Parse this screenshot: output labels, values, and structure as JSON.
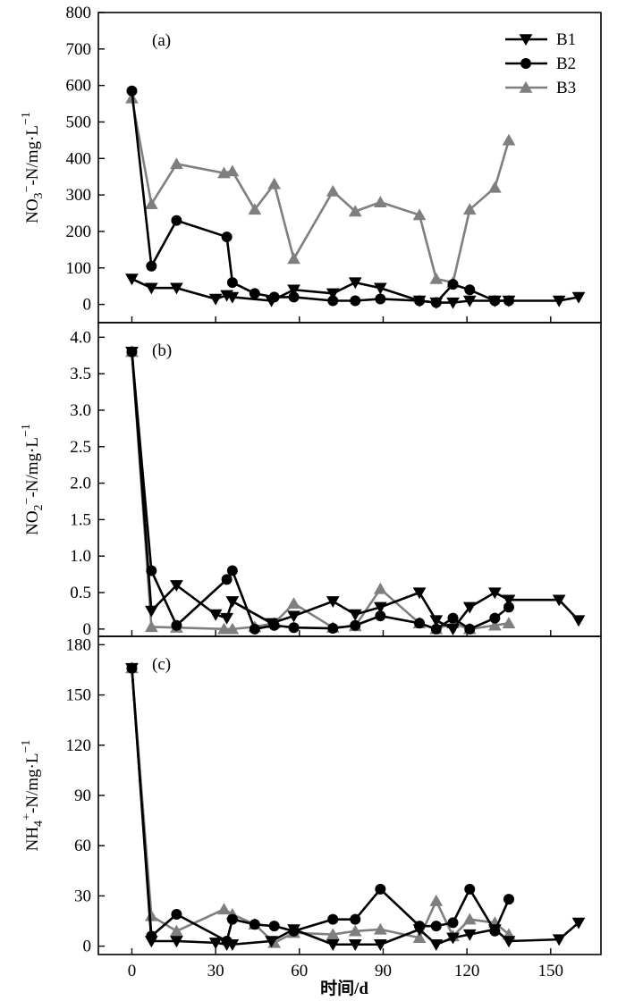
{
  "colors": {
    "B1": "#000000",
    "B2": "#000000",
    "B3": "#7f7f7f",
    "axis": "#000000"
  },
  "markers": {
    "B1": "triangle-down",
    "B2": "circle",
    "B3": "triangle-up"
  },
  "xaxis": {
    "label": "时间/d",
    "ticks": [
      0,
      30,
      60,
      90,
      120,
      150
    ],
    "tick_labels": [
      "0",
      "30",
      "60",
      "90",
      "120",
      "150"
    ],
    "range": [
      -12,
      168
    ]
  },
  "legend": {
    "placement": "top-right",
    "entries": [
      "B1",
      "B2",
      "B3"
    ]
  },
  "chart_data": [
    {
      "type": "line",
      "panel": "(a)",
      "ylabel_parts": [
        "NO",
        "3",
        "−",
        "-N/mg·L",
        "−1"
      ],
      "ylim": [
        -50,
        800
      ],
      "yticks": [
        0,
        100,
        200,
        300,
        400,
        500,
        600,
        700,
        800
      ],
      "ytick_labels": [
        "0",
        "100",
        "200",
        "300",
        "400",
        "500",
        "600",
        "700",
        "800"
      ],
      "series": [
        {
          "name": "B1",
          "x": [
            0,
            7,
            16,
            30,
            34,
            36,
            50,
            58,
            72,
            80,
            89,
            103,
            109,
            115,
            121,
            130,
            135,
            153,
            160
          ],
          "y": [
            70,
            45,
            45,
            15,
            25,
            20,
            10,
            40,
            30,
            60,
            45,
            10,
            5,
            5,
            10,
            10,
            10,
            10,
            20
          ]
        },
        {
          "name": "B2",
          "x": [
            0,
            7,
            16,
            34,
            36,
            44,
            51,
            58,
            72,
            80,
            89,
            103,
            109,
            115,
            121,
            130,
            135
          ],
          "y": [
            585,
            105,
            230,
            185,
            60,
            30,
            20,
            20,
            10,
            10,
            15,
            10,
            5,
            55,
            40,
            10,
            10
          ]
        },
        {
          "name": "B3",
          "x": [
            0,
            7,
            16,
            33,
            36,
            44,
            51,
            58,
            72,
            80,
            89,
            103,
            109,
            115,
            121,
            130,
            135
          ],
          "y": [
            565,
            275,
            385,
            360,
            365,
            260,
            330,
            125,
            310,
            255,
            280,
            245,
            70,
            60,
            260,
            320,
            450
          ]
        }
      ]
    },
    {
      "type": "line",
      "panel": "(b)",
      "ylabel_parts": [
        "NO",
        "2",
        "−",
        "-N/mg·L",
        "−1"
      ],
      "ylim": [
        -0.1,
        4.2
      ],
      "yticks": [
        0,
        0.5,
        1.0,
        1.5,
        2.0,
        2.5,
        3.0,
        3.5,
        4.0
      ],
      "ytick_labels": [
        "0",
        "0.5",
        "1.0",
        "1.5",
        "2.0",
        "2.5",
        "3.0",
        "3.5",
        "4.0"
      ],
      "series": [
        {
          "name": "B1",
          "x": [
            0,
            7,
            16,
            30,
            34,
            36,
            50,
            58,
            72,
            80,
            89,
            103,
            109,
            115,
            121,
            130,
            135,
            153,
            160
          ],
          "y": [
            3.8,
            0.25,
            0.6,
            0.2,
            0.15,
            0.38,
            0.08,
            0.18,
            0.38,
            0.2,
            0.3,
            0.5,
            0.12,
            0.0,
            0.3,
            0.5,
            0.4,
            0.4,
            0.12
          ]
        },
        {
          "name": "B2",
          "x": [
            0,
            7,
            16,
            34,
            36,
            44,
            51,
            58,
            72,
            80,
            89,
            103,
            109,
            115,
            121,
            130,
            135
          ],
          "y": [
            3.8,
            0.8,
            0.05,
            0.68,
            0.8,
            0.0,
            0.05,
            0.02,
            0.01,
            0.05,
            0.18,
            0.08,
            0.0,
            0.15,
            0.0,
            0.15,
            0.3
          ]
        },
        {
          "name": "B3",
          "x": [
            0,
            7,
            16,
            33,
            36,
            44,
            51,
            58,
            72,
            80,
            89,
            103,
            109,
            115,
            121,
            130,
            135
          ],
          "y": [
            3.8,
            0.03,
            0.02,
            0.0,
            0.0,
            0.03,
            0.08,
            0.35,
            0.02,
            0.04,
            0.55,
            0.08,
            0.0,
            0.08,
            0.0,
            0.05,
            0.08
          ]
        }
      ]
    },
    {
      "type": "line",
      "panel": "(c)",
      "ylabel_parts": [
        "NH",
        "4",
        "+",
        "-N/mg·L",
        "−1"
      ],
      "ylim": [
        -5,
        185
      ],
      "yticks": [
        0,
        30,
        60,
        90,
        120,
        150,
        180
      ],
      "ytick_labels": [
        "0",
        "30",
        "60",
        "90",
        "120",
        "150",
        "180"
      ],
      "series": [
        {
          "name": "B1",
          "x": [
            0,
            7,
            16,
            30,
            34,
            36,
            50,
            58,
            72,
            80,
            89,
            103,
            109,
            115,
            121,
            130,
            135,
            153,
            160
          ],
          "y": [
            166,
            3,
            3,
            2,
            1,
            1,
            3,
            10,
            1,
            1,
            1,
            10,
            1,
            5,
            7,
            10,
            3,
            4,
            14
          ]
        },
        {
          "name": "B2",
          "x": [
            0,
            7,
            16,
            34,
            36,
            44,
            51,
            58,
            72,
            80,
            89,
            103,
            109,
            115,
            121,
            130,
            135
          ],
          "y": [
            166,
            6,
            19,
            3,
            16,
            13,
            12,
            9,
            16,
            16,
            34,
            12,
            12,
            14,
            34,
            9,
            28
          ]
        },
        {
          "name": "B3",
          "x": [
            0,
            7,
            16,
            33,
            36,
            44,
            51,
            58,
            72,
            80,
            89,
            103,
            109,
            115,
            121,
            130,
            135
          ],
          "y": [
            166,
            18,
            9,
            22,
            19,
            13,
            2,
            8,
            7,
            9,
            10,
            5,
            27,
            6,
            16,
            14,
            7
          ]
        }
      ]
    }
  ]
}
